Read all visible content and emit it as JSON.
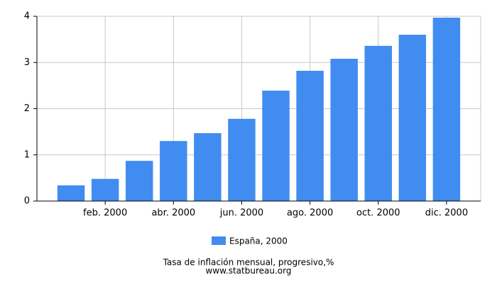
{
  "chart_data": {
    "type": "bar",
    "categories": [
      null,
      "feb. 2000",
      null,
      "abr. 2000",
      null,
      "jun. 2000",
      null,
      "ago. 2000",
      null,
      "oct. 2000",
      null,
      "dic. 2000"
    ],
    "series": [
      {
        "name": "España, 2000",
        "color": "#418cf0",
        "values": [
          0.34,
          0.48,
          0.87,
          1.3,
          1.47,
          1.78,
          2.39,
          2.82,
          3.08,
          3.36,
          3.6,
          3.97
        ]
      }
    ],
    "ylim": [
      0,
      4
    ],
    "yticks": [
      0,
      1,
      2,
      3,
      4
    ],
    "grid": true,
    "caption": "Tasa de inflación mensual, progresivo,%",
    "source": "www.statbureau.org"
  }
}
